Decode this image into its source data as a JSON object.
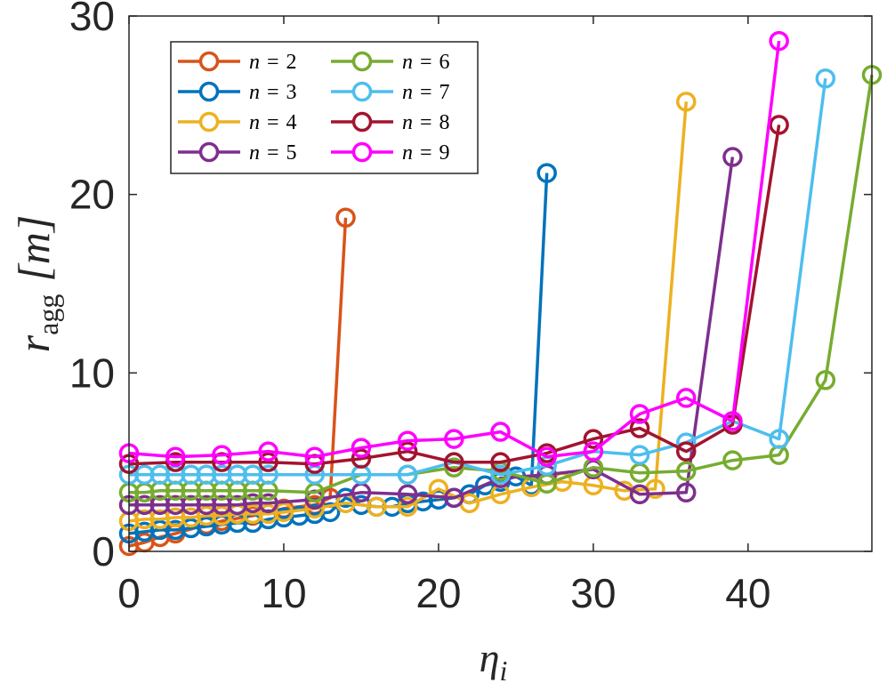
{
  "chart_data": {
    "type": "line",
    "title": "",
    "xlabel": "η",
    "xlabel_sub": "i",
    "ylabel": "r",
    "ylabel_sub": "agg",
    "ylabel_unit": "[m]",
    "xlim": [
      0,
      48
    ],
    "ylim": [
      0,
      30
    ],
    "xticks": [
      0,
      10,
      20,
      30,
      40
    ],
    "yticks": [
      0,
      10,
      20,
      30
    ],
    "grid": false,
    "legend_position": "top-left",
    "series": [
      {
        "name": "n = 2",
        "var": "n",
        "eq": "=",
        "num": "2",
        "color": "#D95319",
        "x": [
          0,
          1,
          2,
          3,
          5,
          6,
          8,
          10,
          12,
          13,
          14
        ],
        "y": [
          0.3,
          0.5,
          0.8,
          1.0,
          1.5,
          1.7,
          2.0,
          2.4,
          2.6,
          3.0,
          18.7
        ]
      },
      {
        "name": "n = 3",
        "var": "n",
        "eq": "=",
        "num": "3",
        "color": "#0072BD",
        "x": [
          0,
          1,
          2,
          3,
          4,
          5,
          6,
          7,
          8,
          9,
          10,
          11,
          12,
          13,
          14,
          15,
          16,
          17,
          18,
          19,
          20,
          21,
          22,
          23,
          24,
          25,
          26,
          27
        ],
        "y": [
          1.0,
          1.1,
          1.2,
          1.2,
          1.3,
          1.4,
          1.5,
          1.6,
          1.6,
          1.8,
          1.9,
          2.0,
          2.1,
          2.2,
          3.0,
          2.6,
          2.5,
          2.5,
          2.7,
          2.8,
          2.9,
          3.0,
          3.2,
          3.7,
          3.9,
          4.2,
          3.7,
          21.2
        ]
      },
      {
        "name": "n = 4",
        "var": "n",
        "eq": "=",
        "num": "4",
        "color": "#EDB120",
        "x": [
          0,
          1,
          2,
          3,
          4,
          5,
          6,
          7,
          8,
          9,
          10,
          12,
          14,
          16,
          18,
          20,
          22,
          24,
          26,
          28,
          30,
          32,
          34,
          36
        ],
        "y": [
          1.7,
          1.8,
          1.8,
          1.9,
          1.9,
          2.0,
          2.0,
          2.1,
          2.1,
          2.1,
          2.2,
          2.4,
          2.7,
          2.5,
          2.5,
          3.5,
          2.7,
          3.2,
          3.6,
          3.9,
          3.7,
          3.4,
          3.5,
          25.2
        ]
      },
      {
        "name": "n = 5",
        "var": "n",
        "eq": "=",
        "num": "5",
        "color": "#7E2F8E",
        "x": [
          0,
          1,
          2,
          3,
          4,
          5,
          6,
          7,
          8,
          9,
          12,
          15,
          18,
          21,
          24,
          27,
          30,
          33,
          36,
          39
        ],
        "y": [
          2.6,
          2.6,
          2.6,
          2.6,
          2.6,
          2.6,
          2.6,
          2.6,
          2.7,
          2.7,
          2.9,
          3.3,
          3.2,
          3.0,
          4.1,
          4.3,
          4.6,
          3.2,
          3.3,
          22.1
        ]
      },
      {
        "name": "n = 6",
        "var": "n",
        "eq": "=",
        "num": "6",
        "color": "#77AC30",
        "x": [
          0,
          1,
          2,
          3,
          4,
          5,
          6,
          7,
          8,
          9,
          12,
          15,
          18,
          21,
          24,
          27,
          30,
          33,
          36,
          39,
          42,
          45,
          48
        ],
        "y": [
          3.3,
          3.3,
          3.4,
          3.4,
          3.4,
          3.4,
          3.4,
          3.4,
          3.4,
          3.4,
          3.3,
          4.3,
          4.3,
          4.7,
          4.5,
          3.8,
          4.7,
          4.4,
          4.5,
          5.1,
          5.4,
          9.6,
          26.7
        ]
      },
      {
        "name": "n = 7",
        "var": "n",
        "eq": "=",
        "num": "7",
        "color": "#4DBEEE",
        "x": [
          0,
          1,
          2,
          3,
          4,
          5,
          6,
          7,
          8,
          9,
          12,
          15,
          18,
          21,
          24,
          27,
          30,
          33,
          36,
          39,
          42,
          45
        ],
        "y": [
          4.3,
          4.3,
          4.3,
          4.3,
          4.3,
          4.3,
          4.3,
          4.3,
          4.3,
          4.3,
          4.3,
          4.3,
          4.3,
          5.0,
          4.3,
          4.8,
          5.6,
          5.4,
          6.1,
          7.3,
          6.3,
          26.5
        ]
      },
      {
        "name": "n = 8",
        "var": "n",
        "eq": "=",
        "num": "8",
        "color": "#A2142F",
        "x": [
          0,
          3,
          6,
          9,
          12,
          15,
          18,
          21,
          24,
          27,
          30,
          33,
          36,
          39,
          42
        ],
        "y": [
          4.9,
          5.0,
          5.0,
          5.0,
          4.9,
          5.2,
          5.6,
          5.0,
          5.0,
          5.5,
          6.3,
          6.9,
          5.6,
          7.1,
          23.9
        ]
      },
      {
        "name": "n = 9",
        "var": "n",
        "eq": "=",
        "num": "9",
        "color": "#FF00FF",
        "x": [
          0,
          3,
          6,
          9,
          12,
          15,
          18,
          21,
          24,
          27,
          30,
          33,
          36,
          39,
          42
        ],
        "y": [
          5.5,
          5.3,
          5.4,
          5.6,
          5.3,
          5.8,
          6.2,
          6.3,
          6.7,
          5.3,
          5.6,
          7.7,
          8.6,
          7.3,
          28.6
        ]
      }
    ]
  }
}
